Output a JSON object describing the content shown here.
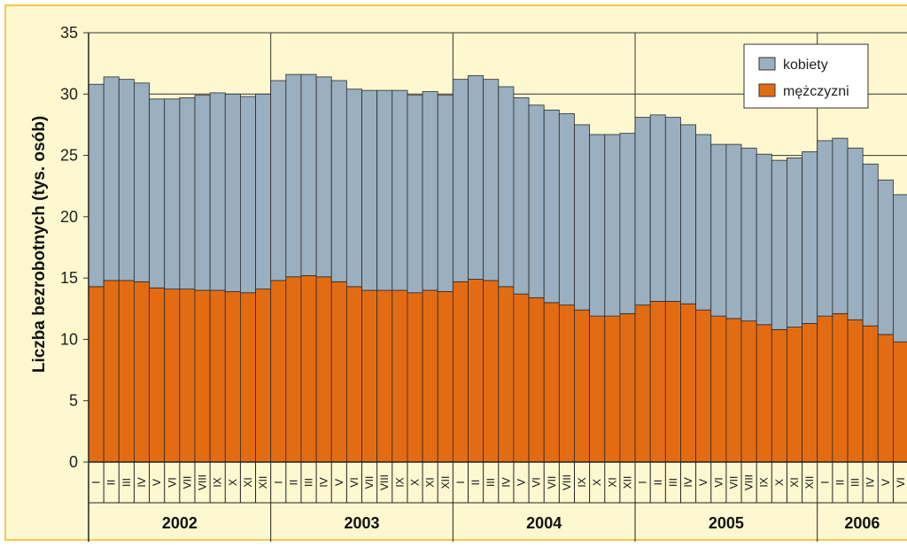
{
  "chart_data": {
    "type": "bar",
    "stacked": true,
    "title": "",
    "xlabel": "",
    "ylabel": "Liczba bezrobotnych (tys. osób)",
    "ylim": [
      0,
      35
    ],
    "yticks": [
      0,
      5,
      10,
      15,
      20,
      25,
      30,
      35
    ],
    "grid": true,
    "legend_position": "top-right",
    "months": [
      "I",
      "II",
      "III",
      "IV",
      "V",
      "VI",
      "VII",
      "VIII",
      "IX",
      "X",
      "XI",
      "XII"
    ],
    "years": [
      "2002",
      "2003",
      "2004",
      "2005",
      "2006"
    ],
    "series": [
      {
        "name": "mężczyzni",
        "color": "#e36c12",
        "values": [
          14.3,
          14.8,
          14.8,
          14.7,
          14.2,
          14.1,
          14.1,
          14.0,
          14.0,
          13.9,
          13.8,
          14.1,
          14.8,
          15.1,
          15.2,
          15.1,
          14.7,
          14.3,
          14.0,
          14.0,
          14.0,
          13.8,
          14.0,
          13.9,
          14.7,
          14.9,
          14.8,
          14.3,
          13.7,
          13.4,
          13.0,
          12.8,
          12.4,
          11.9,
          11.9,
          12.1,
          12.8,
          13.1,
          13.1,
          12.9,
          12.4,
          11.9,
          11.7,
          11.5,
          11.2,
          10.8,
          11.0,
          11.3,
          11.9,
          12.1,
          11.6,
          11.1,
          10.4,
          9.8
        ]
      },
      {
        "name": "kobiety",
        "color": "#9aafbf",
        "values": [
          16.5,
          16.6,
          16.4,
          16.2,
          15.4,
          15.5,
          15.6,
          15.9,
          16.1,
          16.1,
          16.0,
          15.9,
          16.3,
          16.5,
          16.4,
          16.3,
          16.4,
          16.1,
          16.3,
          16.3,
          16.3,
          16.1,
          16.2,
          16.0,
          16.5,
          16.6,
          16.4,
          16.3,
          16.0,
          15.7,
          15.7,
          15.6,
          15.1,
          14.8,
          14.8,
          14.7,
          15.3,
          15.2,
          15.0,
          14.6,
          14.3,
          14.0,
          14.2,
          14.1,
          13.9,
          13.8,
          13.8,
          14.0,
          14.3,
          14.3,
          14.0,
          13.2,
          12.6,
          12.0
        ]
      }
    ]
  }
}
